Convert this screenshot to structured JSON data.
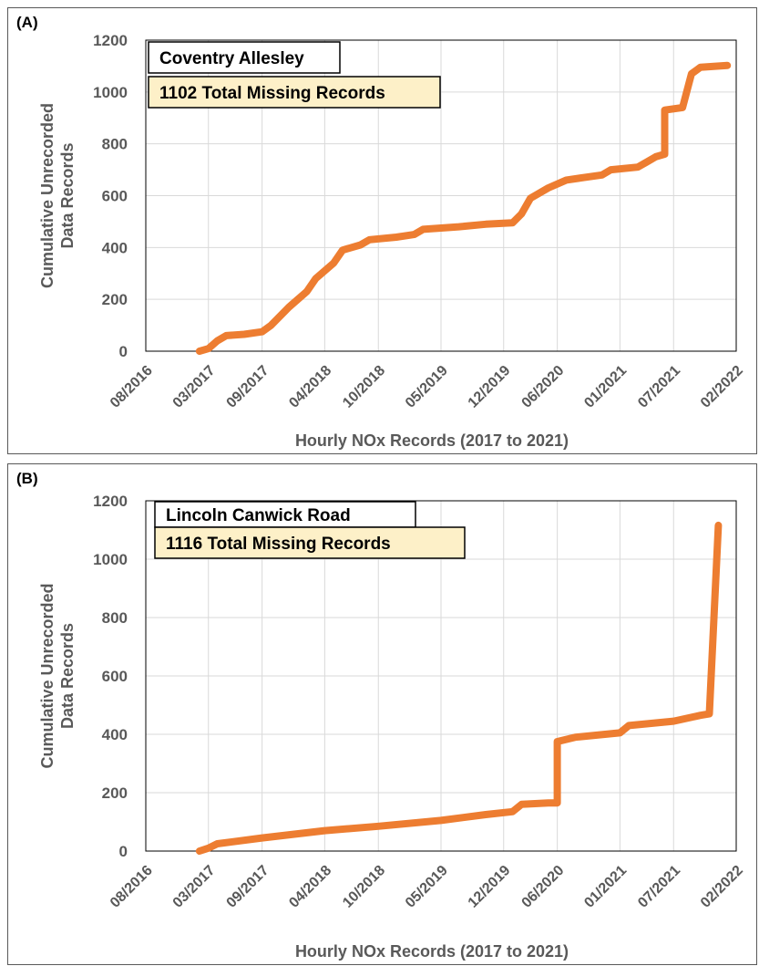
{
  "chart_data": [
    {
      "type": "line",
      "panel_label": "(A)",
      "annotations": [
        "Coventry Allesley",
        "1102 Total Missing Records"
      ],
      "x_label": "Hourly NOx Records (2017 to 2021)",
      "y_label": [
        "Cumulative Unrecorded",
        "Data Records"
      ],
      "xlim": [
        "08/2016",
        "02/2022"
      ],
      "xticks": [
        "08/2016",
        "03/2017",
        "09/2017",
        "04/2018",
        "10/2018",
        "05/2019",
        "12/2019",
        "06/2020",
        "01/2021",
        "07/2021",
        "02/2022"
      ],
      "ylim": [
        0,
        1200
      ],
      "yticks": [
        0,
        200,
        400,
        600,
        800,
        1000,
        1200
      ],
      "grid": true,
      "x": [
        "02/2017",
        "03/2017",
        "04/2017",
        "05/2017",
        "07/2017",
        "09/2017",
        "10/2017",
        "12/2017",
        "02/2018",
        "03/2018",
        "05/2018",
        "06/2018",
        "08/2018",
        "09/2018",
        "12/2018",
        "02/2019",
        "03/2019",
        "07/2019",
        "10/2019",
        "01/2020",
        "02/2020",
        "03/2020",
        "05/2020",
        "07/2020",
        "09/2020",
        "11/2020",
        "12/2020",
        "03/2021",
        "04/2021",
        "05/2021",
        "06/2021",
        "06/2021",
        "07/2021",
        "08/2021",
        "09/2021",
        "10/2021",
        "01/2022"
      ],
      "series": [
        {
          "name": "Coventry Allesley",
          "color": "#ed7d31",
          "values": [
            0,
            10,
            40,
            60,
            65,
            75,
            100,
            170,
            230,
            280,
            340,
            390,
            410,
            430,
            440,
            450,
            470,
            480,
            490,
            495,
            530,
            590,
            630,
            660,
            670,
            680,
            700,
            710,
            730,
            750,
            760,
            930,
            935,
            940,
            1070,
            1095,
            1102
          ]
        }
      ]
    },
    {
      "type": "line",
      "panel_label": "(B)",
      "annotations": [
        "Lincoln Canwick Road",
        "1116 Total Missing Records"
      ],
      "x_label": "Hourly NOx Records (2017 to 2021)",
      "y_label": [
        "Cumulative Unrecorded",
        "Data Records"
      ],
      "xlim": [
        "08/2016",
        "02/2022"
      ],
      "xticks": [
        "08/2016",
        "03/2017",
        "09/2017",
        "04/2018",
        "10/2018",
        "05/2019",
        "12/2019",
        "06/2020",
        "01/2021",
        "07/2021",
        "02/2022"
      ],
      "ylim": [
        0,
        1200
      ],
      "yticks": [
        0,
        200,
        400,
        600,
        800,
        1000,
        1200
      ],
      "grid": true,
      "x": [
        "02/2017",
        "03/2017",
        "04/2017",
        "09/2017",
        "04/2018",
        "10/2018",
        "05/2019",
        "10/2019",
        "01/2020",
        "02/2020",
        "05/2020",
        "06/2020",
        "06/2020",
        "08/2020",
        "01/2021",
        "02/2021",
        "07/2021",
        "10/2021",
        "11/2021",
        "12/2021"
      ],
      "series": [
        {
          "name": "Lincoln Canwick Road",
          "color": "#ed7d31",
          "values": [
            0,
            10,
            25,
            45,
            70,
            85,
            105,
            125,
            135,
            160,
            165,
            165,
            375,
            390,
            405,
            430,
            445,
            465,
            470,
            1116
          ]
        }
      ]
    }
  ]
}
